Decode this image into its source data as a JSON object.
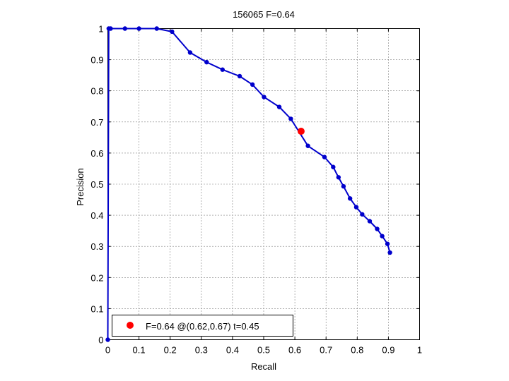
{
  "chart_data": {
    "type": "line",
    "title": "156065 F=0.64",
    "xlabel": "Recall",
    "ylabel": "Precision",
    "xlim": [
      0,
      1
    ],
    "ylim": [
      0,
      1
    ],
    "xticks": [
      0,
      0.1,
      0.2,
      0.3,
      0.4,
      0.5,
      0.6,
      0.7,
      0.8,
      0.9,
      1
    ],
    "yticks": [
      0,
      0.1,
      0.2,
      0.3,
      0.4,
      0.5,
      0.6,
      0.7,
      0.8,
      0.9,
      1
    ],
    "xtick_labels": [
      "0",
      "0.1",
      "0.2",
      "0.3",
      "0.4",
      "0.5",
      "0.6",
      "0.7",
      "0.8",
      "0.9",
      "1"
    ],
    "ytick_labels": [
      "0",
      "0.1",
      "0.2",
      "0.3",
      "0.4",
      "0.5",
      "0.6",
      "0.7",
      "0.8",
      "0.9",
      "1"
    ],
    "grid": true,
    "legend_position": "bottom-left",
    "series": [
      {
        "color": "#0000cc",
        "x": [
          0,
          0.003,
          0.009,
          0.055,
          0.1,
          0.157,
          0.206,
          0.264,
          0.317,
          0.368,
          0.423,
          0.464,
          0.501,
          0.55,
          0.587,
          0.642,
          0.695,
          0.723,
          0.74,
          0.756,
          0.777,
          0.797,
          0.816,
          0.84,
          0.864,
          0.88,
          0.897,
          0.905
        ],
        "y": [
          0,
          1,
          1,
          1,
          1,
          1,
          0.99,
          0.923,
          0.892,
          0.868,
          0.847,
          0.82,
          0.78,
          0.748,
          0.71,
          0.623,
          0.587,
          0.555,
          0.522,
          0.493,
          0.454,
          0.426,
          0.403,
          0.381,
          0.356,
          0.333,
          0.308,
          0.28
        ]
      }
    ],
    "best_point": {
      "x": 0.62,
      "y": 0.67,
      "color": "#ff0000"
    },
    "legend_label": "F=0.64 @(0.62,0.67) t=0.45"
  }
}
